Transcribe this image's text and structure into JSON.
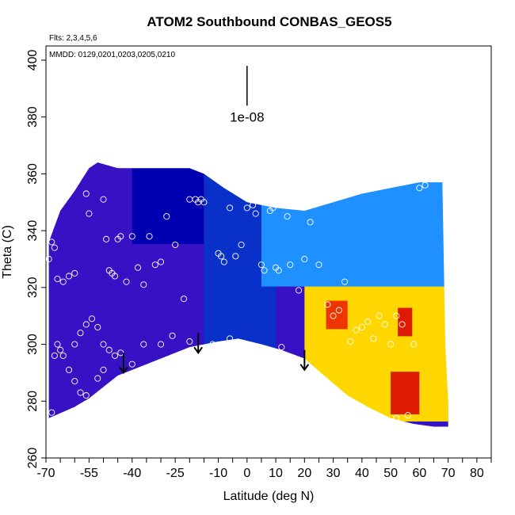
{
  "chart_data": {
    "type": "heatmap",
    "title": "ATOM2 Southbound CONBAS_GEOS5",
    "notes": [
      "Flts: 2,3,4,5,6",
      "MMDD: 0129,0201,0203,0205,0210"
    ],
    "xlabel": "Latitude (deg N)",
    "ylabel": "Theta (C)",
    "xlim": [
      -70,
      85
    ],
    "ylim": [
      260,
      405
    ],
    "x_ticks": [
      -70,
      -55,
      -40,
      -25,
      -10,
      0,
      10,
      20,
      30,
      40,
      50,
      60,
      70,
      80
    ],
    "x_tick_labels": [
      "-70",
      "-55",
      "-40",
      "-25",
      "-10",
      "0",
      "10",
      "20",
      "30",
      "40",
      "50",
      "60",
      "70",
      "80"
    ],
    "y_ticks": [
      260,
      280,
      300,
      320,
      340,
      360,
      380,
      400
    ],
    "y_tick_labels": [
      "260",
      "280",
      "300",
      "320",
      "340",
      "360",
      "380",
      "400"
    ],
    "scale_label": "1e-08",
    "scale_bar": {
      "x": 0,
      "y_from": 384,
      "y_to": 398
    },
    "colors": {
      "low": "#8a2be2",
      "mid_low": "#0000b0",
      "mid": "#1e90ff",
      "mid_high": "#ffffff",
      "high": "#ffd700",
      "peak": "#cc0000",
      "marker": "#ffffff"
    },
    "coverage": {
      "bottom": [
        [
          -69,
          274
        ],
        [
          -60,
          278
        ],
        [
          -55,
          281
        ],
        [
          -50,
          285
        ],
        [
          -45,
          289
        ],
        [
          -40,
          291
        ],
        [
          -30,
          295
        ],
        [
          -20,
          299
        ],
        [
          -10,
          301
        ],
        [
          -3,
          302
        ],
        [
          5,
          300
        ],
        [
          12,
          298
        ],
        [
          20,
          295
        ],
        [
          28,
          288
        ],
        [
          35,
          282
        ],
        [
          42,
          278
        ],
        [
          50,
          274
        ],
        [
          58,
          272
        ],
        [
          65,
          271
        ],
        [
          70,
          271
        ]
      ],
      "top": [
        [
          -69,
          336
        ],
        [
          -65,
          347
        ],
        [
          -60,
          354
        ],
        [
          -55,
          362
        ],
        [
          -52,
          364
        ],
        [
          -45,
          362
        ],
        [
          -20,
          362
        ],
        [
          -15,
          360
        ],
        [
          -8,
          355
        ],
        [
          0,
          350
        ],
        [
          10,
          348
        ],
        [
          20,
          347
        ],
        [
          30,
          350
        ],
        [
          40,
          353
        ],
        [
          50,
          355
        ],
        [
          60,
          357
        ],
        [
          65,
          357
        ],
        [
          68,
          357
        ]
      ],
      "right": [
        [
          68,
          357
        ],
        [
          69,
          300
        ],
        [
          70,
          280
        ],
        [
          70,
          271
        ]
      ]
    },
    "field": {
      "regions": [
        {
          "name": "southern",
          "lat": [
            -70,
            -25
          ],
          "value": 1.5
        },
        {
          "name": "upper-subtropics",
          "lat": [
            -40,
            0
          ],
          "theta": [
            335,
            365
          ],
          "value": 2.5
        },
        {
          "name": "equatorial",
          "lat": [
            -15,
            10
          ],
          "value": 3.0
        },
        {
          "name": "northern-upper",
          "lat": [
            5,
            70
          ],
          "theta": [
            320,
            360
          ],
          "value": 4.0
        },
        {
          "name": "northern-lower",
          "lat": [
            20,
            70
          ],
          "theta": [
            272,
            320
          ],
          "value": 7.0
        },
        {
          "name": "peak-1",
          "lat": [
            28,
            35
          ],
          "theta": [
            306,
            316
          ],
          "value": 9.0
        },
        {
          "name": "peak-2",
          "lat": [
            52,
            57
          ],
          "theta": [
            302,
            312
          ],
          "value": 9.5
        },
        {
          "name": "peak-3",
          "lat": [
            50,
            60
          ],
          "theta": [
            275,
            290
          ],
          "value": 9.5
        }
      ]
    },
    "points": [
      [
        -69,
        330
      ],
      [
        -68,
        336
      ],
      [
        -67,
        334
      ],
      [
        -66,
        323
      ],
      [
        -64,
        322
      ],
      [
        -62,
        324
      ],
      [
        -60,
        325
      ],
      [
        -56,
        353
      ],
      [
        -55,
        346
      ],
      [
        -50,
        351
      ],
      [
        -49,
        337
      ],
      [
        -48,
        326
      ],
      [
        -47,
        325
      ],
      [
        -46,
        324
      ],
      [
        -45,
        337
      ],
      [
        -44,
        338
      ],
      [
        -42,
        322
      ],
      [
        -40,
        338
      ],
      [
        -38,
        327
      ],
      [
        -36,
        321
      ],
      [
        -34,
        338
      ],
      [
        -32,
        328
      ],
      [
        -30,
        329
      ],
      [
        -28,
        345
      ],
      [
        -25,
        335
      ],
      [
        -22,
        316
      ],
      [
        -20,
        351
      ],
      [
        -18,
        351
      ],
      [
        -17,
        350
      ],
      [
        -16,
        351
      ],
      [
        -15,
        350
      ],
      [
        -10,
        332
      ],
      [
        -9,
        331
      ],
      [
        -8,
        329
      ],
      [
        -6,
        348
      ],
      [
        -4,
        331
      ],
      [
        -2,
        335
      ],
      [
        0,
        348
      ],
      [
        2,
        349
      ],
      [
        3,
        346
      ],
      [
        5,
        328
      ],
      [
        6,
        326
      ],
      [
        8,
        347
      ],
      [
        9,
        348
      ],
      [
        10,
        327
      ],
      [
        11,
        326
      ],
      [
        12,
        299
      ],
      [
        14,
        345
      ],
      [
        15,
        328
      ],
      [
        18,
        319
      ],
      [
        20,
        330
      ],
      [
        22,
        343
      ],
      [
        25,
        328
      ],
      [
        28,
        314
      ],
      [
        30,
        310
      ],
      [
        32,
        312
      ],
      [
        34,
        322
      ],
      [
        36,
        301
      ],
      [
        38,
        305
      ],
      [
        40,
        306
      ],
      [
        42,
        308
      ],
      [
        44,
        302
      ],
      [
        46,
        310
      ],
      [
        48,
        307
      ],
      [
        50,
        300
      ],
      [
        52,
        310
      ],
      [
        54,
        307
      ],
      [
        56,
        275
      ],
      [
        58,
        300
      ],
      [
        60,
        355
      ],
      [
        62,
        356
      ],
      [
        -60,
        300
      ],
      [
        -58,
        304
      ],
      [
        -56,
        307
      ],
      [
        -54,
        309
      ],
      [
        -52,
        306
      ],
      [
        -50,
        300
      ],
      [
        -48,
        298
      ],
      [
        -46,
        296
      ],
      [
        -66,
        300
      ],
      [
        -64,
        296
      ],
      [
        -62,
        291
      ],
      [
        -60,
        287
      ],
      [
        -58,
        283
      ],
      [
        -56,
        282
      ],
      [
        -54,
        280
      ],
      [
        -52,
        288
      ],
      [
        -50,
        291
      ],
      [
        -44,
        297
      ],
      [
        -40,
        293
      ],
      [
        -36,
        300
      ],
      [
        -30,
        300
      ],
      [
        -26,
        303
      ],
      [
        -20,
        301
      ],
      [
        -12,
        300
      ],
      [
        -6,
        302
      ],
      [
        -68,
        276
      ],
      [
        -67,
        296
      ],
      [
        -65,
        298
      ],
      [
        52,
        274
      ]
    ],
    "arrows": [
      {
        "x": -43,
        "y_from": 297,
        "y_to": 290
      },
      {
        "x": -17,
        "y_from": 304,
        "y_to": 297
      },
      {
        "x": 20,
        "y_from": 298,
        "y_to": 291
      }
    ]
  }
}
